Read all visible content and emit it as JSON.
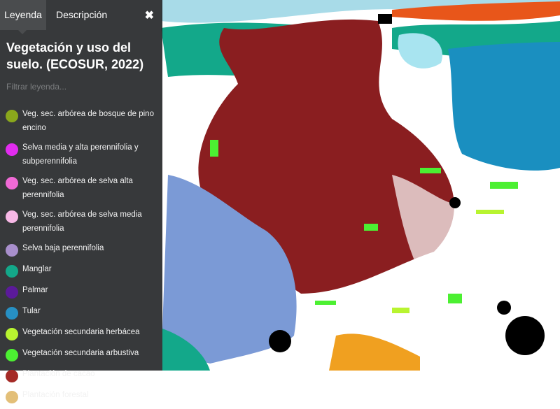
{
  "panel": {
    "tabs": [
      {
        "label": "Leyenda",
        "active": true
      },
      {
        "label": "Descripción",
        "active": false
      }
    ],
    "close_icon": "close-icon",
    "title": "Vegetación y uso del suelo. (ECOSUR, 2022)",
    "filter_placeholder": "Filtrar leyenda...",
    "legend": [
      {
        "label": "Veg. sec. arbórea de bosque de pino encino",
        "color": "#8aa71c"
      },
      {
        "label": "Selva media y alta perennifolia y subperennifolia",
        "color": "#e22cf0"
      },
      {
        "label": "Veg. sec. arbórea de selva alta perennifolia",
        "color": "#f06ad6"
      },
      {
        "label": "Veg. sec. arbórea de selva media perennifolia",
        "color": "#f7b8e6"
      },
      {
        "label": "Selva baja perennifolia",
        "color": "#a88fcc"
      },
      {
        "label": "Manglar",
        "color": "#13a88a"
      },
      {
        "label": "Palmar",
        "color": "#5b1a9a"
      },
      {
        "label": "Tular",
        "color": "#2790c4"
      },
      {
        "label": "Vegetación secundaria herbácea",
        "color": "#b8f430"
      },
      {
        "label": "Vegetación secundaria arbustiva",
        "color": "#4cf032"
      },
      {
        "label": "Plantación de cacao",
        "color": "#a52a26"
      },
      {
        "label": "Plantación forestal",
        "color": "#e3bf78"
      }
    ]
  }
}
